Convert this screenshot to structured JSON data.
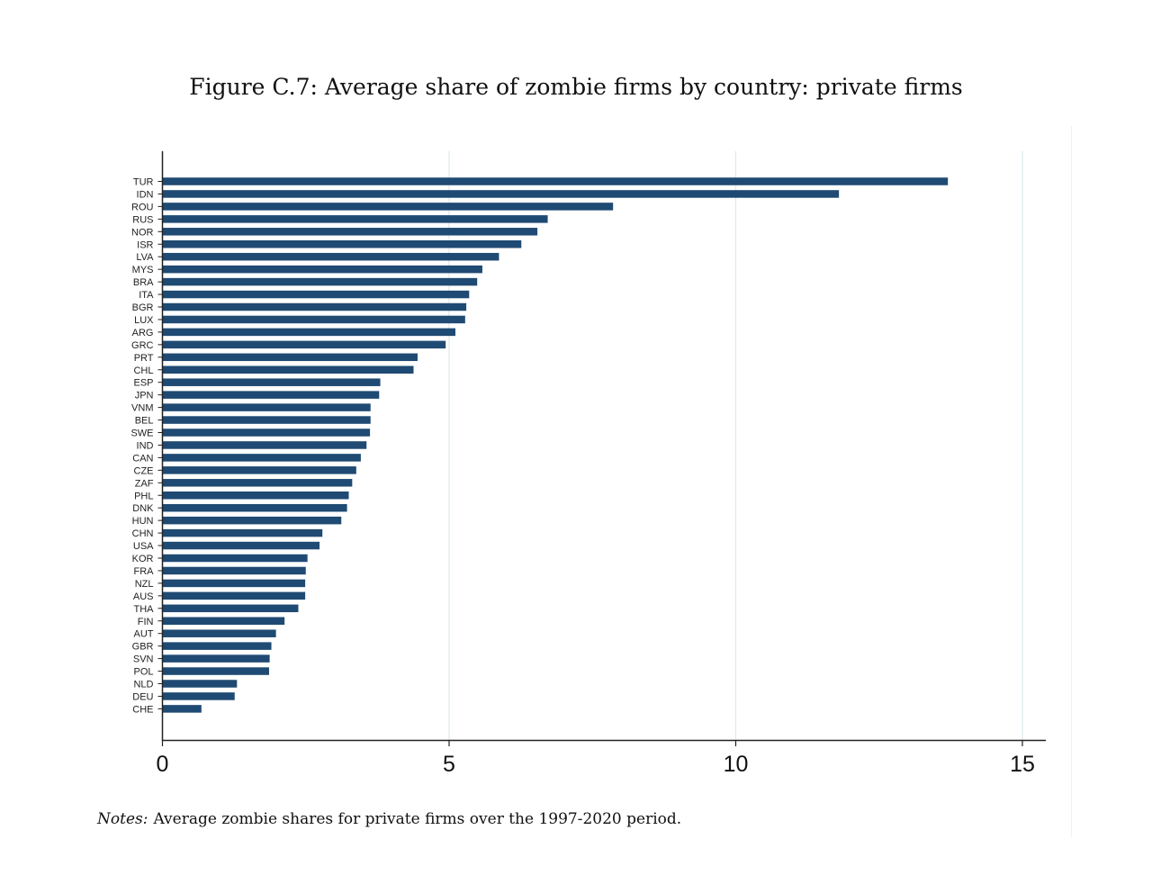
{
  "figure_caption": "Figure C.7: Average share of zombie firms by country: private firms",
  "notes": {
    "label": "Notes:",
    "text": "Average zombie shares for private firms over the 1997-2020 period."
  },
  "chart_data": {
    "type": "bar",
    "orientation": "horizontal",
    "title": "",
    "xlabel": "",
    "ylabel": "",
    "xlim": [
      0,
      15.4
    ],
    "xticks": [
      0,
      5,
      10,
      15
    ],
    "grid": true,
    "bar_color": "#1f4a73",
    "grid_color": "#dde8ec",
    "categories": [
      "TUR",
      "IDN",
      "ROU",
      "RUS",
      "NOR",
      "ISR",
      "LVA",
      "MYS",
      "BRA",
      "ITA",
      "BGR",
      "LUX",
      "ARG",
      "GRC",
      "PRT",
      "CHL",
      "ESP",
      "JPN",
      "VNM",
      "BEL",
      "SWE",
      "IND",
      "CAN",
      "CZE",
      "ZAF",
      "PHL",
      "DNK",
      "HUN",
      "CHN",
      "USA",
      "KOR",
      "FRA",
      "NZL",
      "AUS",
      "THA",
      "FIN",
      "AUT",
      "GBR",
      "SVN",
      "POL",
      "NLD",
      "DEU",
      "CHE"
    ],
    "values": [
      13.7,
      11.8,
      7.86,
      6.72,
      6.54,
      6.26,
      5.87,
      5.58,
      5.49,
      5.35,
      5.3,
      5.28,
      5.11,
      4.94,
      4.45,
      4.38,
      3.8,
      3.78,
      3.63,
      3.63,
      3.62,
      3.56,
      3.46,
      3.38,
      3.31,
      3.25,
      3.22,
      3.12,
      2.79,
      2.74,
      2.53,
      2.5,
      2.49,
      2.49,
      2.37,
      2.13,
      1.98,
      1.9,
      1.87,
      1.86,
      1.3,
      1.26,
      0.68
    ]
  }
}
